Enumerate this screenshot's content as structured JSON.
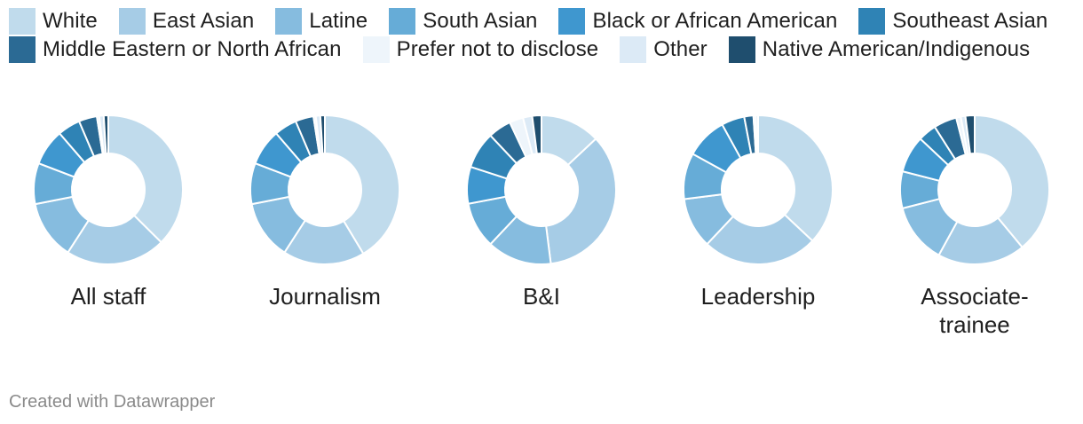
{
  "legend": [
    {
      "label": "White",
      "color": "#c0dbec"
    },
    {
      "label": "East Asian",
      "color": "#a6cce6"
    },
    {
      "label": "Latine",
      "color": "#86bcdf"
    },
    {
      "label": "South Asian",
      "color": "#66acd7"
    },
    {
      "label": "Black or African American",
      "color": "#3f97cf"
    },
    {
      "label": "Southeast Asian",
      "color": "#2f83b5"
    },
    {
      "label": "Middle Eastern or North African",
      "color": "#2b6a94"
    },
    {
      "label": "Prefer not to disclose",
      "color": "#eef5fb"
    },
    {
      "label": "Other",
      "color": "#dceaf6"
    },
    {
      "label": "Native American/Indigenous",
      "color": "#1f4e6e"
    }
  ],
  "chart_data": [
    {
      "type": "pie",
      "title": "All staff",
      "slices": [
        {
          "label": "White",
          "value": 38
        },
        {
          "label": "East Asian",
          "value": 22
        },
        {
          "label": "Latine",
          "value": 13
        },
        {
          "label": "South Asian",
          "value": 9
        },
        {
          "label": "Black or African American",
          "value": 8
        },
        {
          "label": "Southeast Asian",
          "value": 5
        },
        {
          "label": "Middle Eastern or North African",
          "value": 4
        },
        {
          "label": "Prefer not to disclose",
          "value": 0.5
        },
        {
          "label": "Other",
          "value": 1
        },
        {
          "label": "Native American/Indigenous",
          "value": 1
        }
      ]
    },
    {
      "type": "pie",
      "title": "Journalism",
      "slices": [
        {
          "label": "White",
          "value": 42
        },
        {
          "label": "East Asian",
          "value": 18
        },
        {
          "label": "Latine",
          "value": 13
        },
        {
          "label": "South Asian",
          "value": 9
        },
        {
          "label": "Black or African American",
          "value": 8
        },
        {
          "label": "Southeast Asian",
          "value": 5
        },
        {
          "label": "Middle Eastern or North African",
          "value": 4
        },
        {
          "label": "Prefer not to disclose",
          "value": 0.5
        },
        {
          "label": "Other",
          "value": 1
        },
        {
          "label": "Native American/Indigenous",
          "value": 1
        }
      ]
    },
    {
      "type": "pie",
      "title": "B&I",
      "slices": [
        {
          "label": "White",
          "value": 13
        },
        {
          "label": "East Asian",
          "value": 35
        },
        {
          "label": "Latine",
          "value": 14
        },
        {
          "label": "South Asian",
          "value": 10
        },
        {
          "label": "Black or African American",
          "value": 8
        },
        {
          "label": "Southeast Asian",
          "value": 8
        },
        {
          "label": "Middle Eastern or North African",
          "value": 5
        },
        {
          "label": "Prefer not to disclose",
          "value": 3
        },
        {
          "label": "Other",
          "value": 2
        },
        {
          "label": "Native American/Indigenous",
          "value": 2
        }
      ]
    },
    {
      "type": "pie",
      "title": "Leadership",
      "slices": [
        {
          "label": "White",
          "value": 37
        },
        {
          "label": "East Asian",
          "value": 25
        },
        {
          "label": "Latine",
          "value": 11
        },
        {
          "label": "South Asian",
          "value": 10
        },
        {
          "label": "Black or African American",
          "value": 9
        },
        {
          "label": "Southeast Asian",
          "value": 5
        },
        {
          "label": "Middle Eastern or North African",
          "value": 2
        },
        {
          "label": "Prefer not to disclose",
          "value": 0.5
        },
        {
          "label": "Other",
          "value": 0.5
        },
        {
          "label": "Native American/Indigenous",
          "value": 0
        }
      ]
    },
    {
      "type": "pie",
      "title": "Associate-\ntrainee",
      "slices": [
        {
          "label": "White",
          "value": 39
        },
        {
          "label": "East Asian",
          "value": 19
        },
        {
          "label": "Latine",
          "value": 13
        },
        {
          "label": "South Asian",
          "value": 8
        },
        {
          "label": "Black or African American",
          "value": 8
        },
        {
          "label": "Southeast Asian",
          "value": 4
        },
        {
          "label": "Middle Eastern or North African",
          "value": 5
        },
        {
          "label": "Prefer not to disclose",
          "value": 1
        },
        {
          "label": "Other",
          "value": 1
        },
        {
          "label": "Native American/Indigenous",
          "value": 2
        }
      ]
    }
  ],
  "footer": {
    "text": "Created with Datawrapper"
  }
}
